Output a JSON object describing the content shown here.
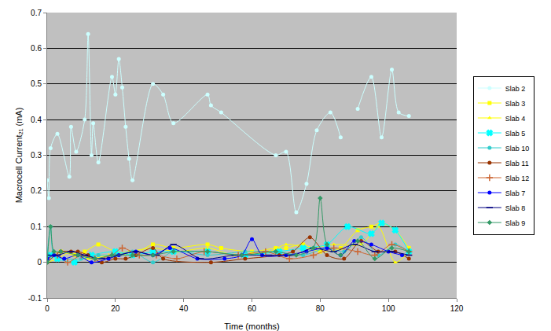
{
  "chart_data": {
    "type": "line",
    "x_label": "Time (months)",
    "y_label": "Macrocell Current₂₁ (mA)",
    "xlim": [
      0,
      120
    ],
    "xticks": [
      0,
      20,
      40,
      60,
      80,
      100,
      120
    ],
    "ylim": [
      -0.1,
      0.7
    ],
    "yticks": [
      -0.1,
      0,
      0.1,
      0.2,
      0.3,
      0.4,
      0.5,
      0.6,
      0.7
    ],
    "grid": true,
    "legend": "right",
    "series": [
      {
        "name": "Slab 2",
        "color": "#ccffff",
        "marker": "circle",
        "x": [
          0,
          0.5,
          1,
          3,
          6.5,
          7,
          8.5,
          11,
          12,
          13,
          13.5,
          15,
          19,
          20,
          21,
          22,
          23,
          24,
          25,
          31,
          34,
          37,
          47,
          48,
          51,
          67,
          70,
          73,
          76,
          79,
          83,
          86,
          88,
          91,
          95,
          98,
          101,
          103,
          106
        ],
        "values": [
          0.23,
          0.18,
          0.32,
          0.36,
          0.24,
          0.38,
          0.31,
          0.4,
          0.64,
          0.3,
          0.39,
          0.28,
          0.52,
          0.47,
          0.57,
          0.49,
          0.38,
          0.29,
          0.23,
          0.5,
          0.47,
          0.39,
          0.47,
          0.44,
          0.42,
          0.3,
          0.31,
          0.14,
          0.22,
          0.37,
          0.42,
          0.35,
          null,
          0.43,
          0.52,
          0.35,
          0.54,
          0.42,
          0.41
        ]
      },
      {
        "name": "Slab 3",
        "color": "#ffff00",
        "marker": "square",
        "x": [
          0,
          4,
          8,
          11,
          15,
          20,
          25,
          31,
          37,
          47,
          51,
          60,
          67,
          70,
          75,
          80,
          86,
          91,
          95,
          98,
          102,
          106
        ],
        "values": [
          0.02,
          0.03,
          0.02,
          0.03,
          0.05,
          0.03,
          0.02,
          0.05,
          0.04,
          0.05,
          0.04,
          0.03,
          0.04,
          0.04,
          0.05,
          0.03,
          0.04,
          0.09,
          0.1,
          0.11,
          0.09,
          0.04
        ]
      },
      {
        "name": "Slab 4",
        "color": "#ffff00",
        "marker": "triangle-up",
        "x": [
          0,
          3,
          7,
          12,
          18,
          24,
          31,
          38,
          47,
          55,
          65,
          70,
          77,
          84,
          92,
          97,
          102,
          106
        ],
        "values": [
          0.0,
          0.01,
          0.03,
          0.01,
          0.02,
          0.03,
          0.04,
          0.03,
          0.04,
          0.02,
          0.03,
          0.05,
          0.04,
          0.05,
          0.05,
          0.1,
          0.0,
          0.03
        ]
      },
      {
        "name": "Slab 5",
        "color": "#00ffff",
        "marker": "x",
        "x": [
          0,
          1,
          3,
          8,
          13,
          20,
          25,
          31,
          37,
          47,
          58,
          68,
          75,
          82,
          88,
          95,
          98,
          102,
          106
        ],
        "values": [
          0.01,
          0.02,
          0.01,
          0.0,
          0.02,
          0.03,
          0.02,
          0.03,
          0.03,
          0.03,
          0.02,
          0.03,
          0.04,
          0.05,
          0.1,
          0.08,
          0.11,
          0.09,
          0.03
        ]
      },
      {
        "name": "Slab 10",
        "color": "#33cccc",
        "marker": "circle",
        "x": [
          0,
          1,
          2,
          5,
          10,
          15,
          20,
          25,
          31,
          37,
          47,
          58,
          67,
          75,
          82,
          87,
          92,
          97,
          102,
          106
        ],
        "values": [
          0.02,
          0.1,
          0.02,
          0.01,
          0.01,
          0.02,
          0.02,
          0.03,
          0.0,
          0.03,
          0.02,
          0.03,
          0.03,
          0.02,
          0.04,
          0.03,
          0.07,
          0.02,
          0.05,
          0.03
        ]
      },
      {
        "name": "Slab 11",
        "color": "#993300",
        "marker": "circle",
        "x": [
          0,
          4,
          7,
          9,
          12,
          16,
          20,
          23,
          26,
          31,
          34,
          48,
          58,
          68,
          72,
          77,
          82,
          87,
          92,
          97,
          102,
          106
        ],
        "values": [
          0.0,
          0.03,
          0.03,
          0.03,
          0.02,
          0.0,
          0.01,
          0.01,
          0.02,
          0.04,
          0.01,
          0.0,
          0.01,
          0.02,
          0.03,
          0.07,
          0.02,
          0.01,
          0.06,
          0.03,
          0.03,
          0.01
        ]
      },
      {
        "name": "Slab 12",
        "color": "#cc6633",
        "marker": "cross-thin",
        "x": [
          0,
          3,
          6,
          10,
          14,
          19,
          22,
          27,
          32,
          38,
          46,
          56,
          64,
          71,
          78,
          84,
          91,
          96,
          101,
          106
        ],
        "values": [
          0.01,
          0.02,
          0.0,
          0.02,
          0.01,
          0.02,
          0.04,
          0.02,
          0.02,
          0.01,
          0.03,
          0.02,
          0.03,
          0.01,
          0.02,
          0.04,
          0.03,
          0.02,
          0.05,
          0.03
        ]
      },
      {
        "name": "Slab 7",
        "color": "#0000ff",
        "marker": "circle",
        "x": [
          0,
          2,
          5,
          9,
          13,
          18,
          21,
          26,
          31,
          36,
          44,
          52,
          57,
          60,
          63,
          70,
          76,
          82,
          86,
          90,
          95,
          100,
          104
        ],
        "values": [
          0.01,
          0.02,
          0.01,
          0.02,
          0.0,
          0.01,
          0.02,
          0.03,
          0.02,
          0.04,
          0.01,
          0.01,
          0.02,
          0.065,
          0.02,
          0.02,
          0.03,
          0.04,
          0.02,
          0.06,
          0.05,
          0.03,
          0.02
        ]
      },
      {
        "name": "Slab 8",
        "color": "#000080",
        "marker": "line-ew",
        "x": [
          0,
          3,
          7,
          11,
          16,
          21,
          26,
          32,
          37,
          45,
          55,
          65,
          72,
          78,
          84,
          90,
          96,
          101,
          106
        ],
        "values": [
          0.02,
          0.02,
          0.03,
          0.02,
          0.01,
          0.02,
          0.03,
          0.02,
          0.05,
          0.01,
          0.02,
          0.02,
          0.02,
          0.04,
          0.03,
          0.05,
          0.03,
          0.03,
          0.02
        ]
      },
      {
        "name": "Slab 9",
        "color": "#339966",
        "marker": "diamond",
        "x": [
          0,
          1,
          2,
          4,
          9,
          14,
          19,
          25,
          31,
          37,
          47,
          57,
          67,
          73,
          78,
          80,
          82,
          86,
          91,
          96,
          101,
          106
        ],
        "values": [
          0.0,
          0.1,
          0.03,
          0.03,
          0.02,
          0.01,
          0.02,
          0.02,
          0.02,
          0.03,
          0.03,
          0.02,
          0.03,
          0.02,
          0.04,
          0.18,
          0.05,
          0.02,
          0.06,
          0.01,
          0.04,
          0.03
        ]
      }
    ]
  }
}
